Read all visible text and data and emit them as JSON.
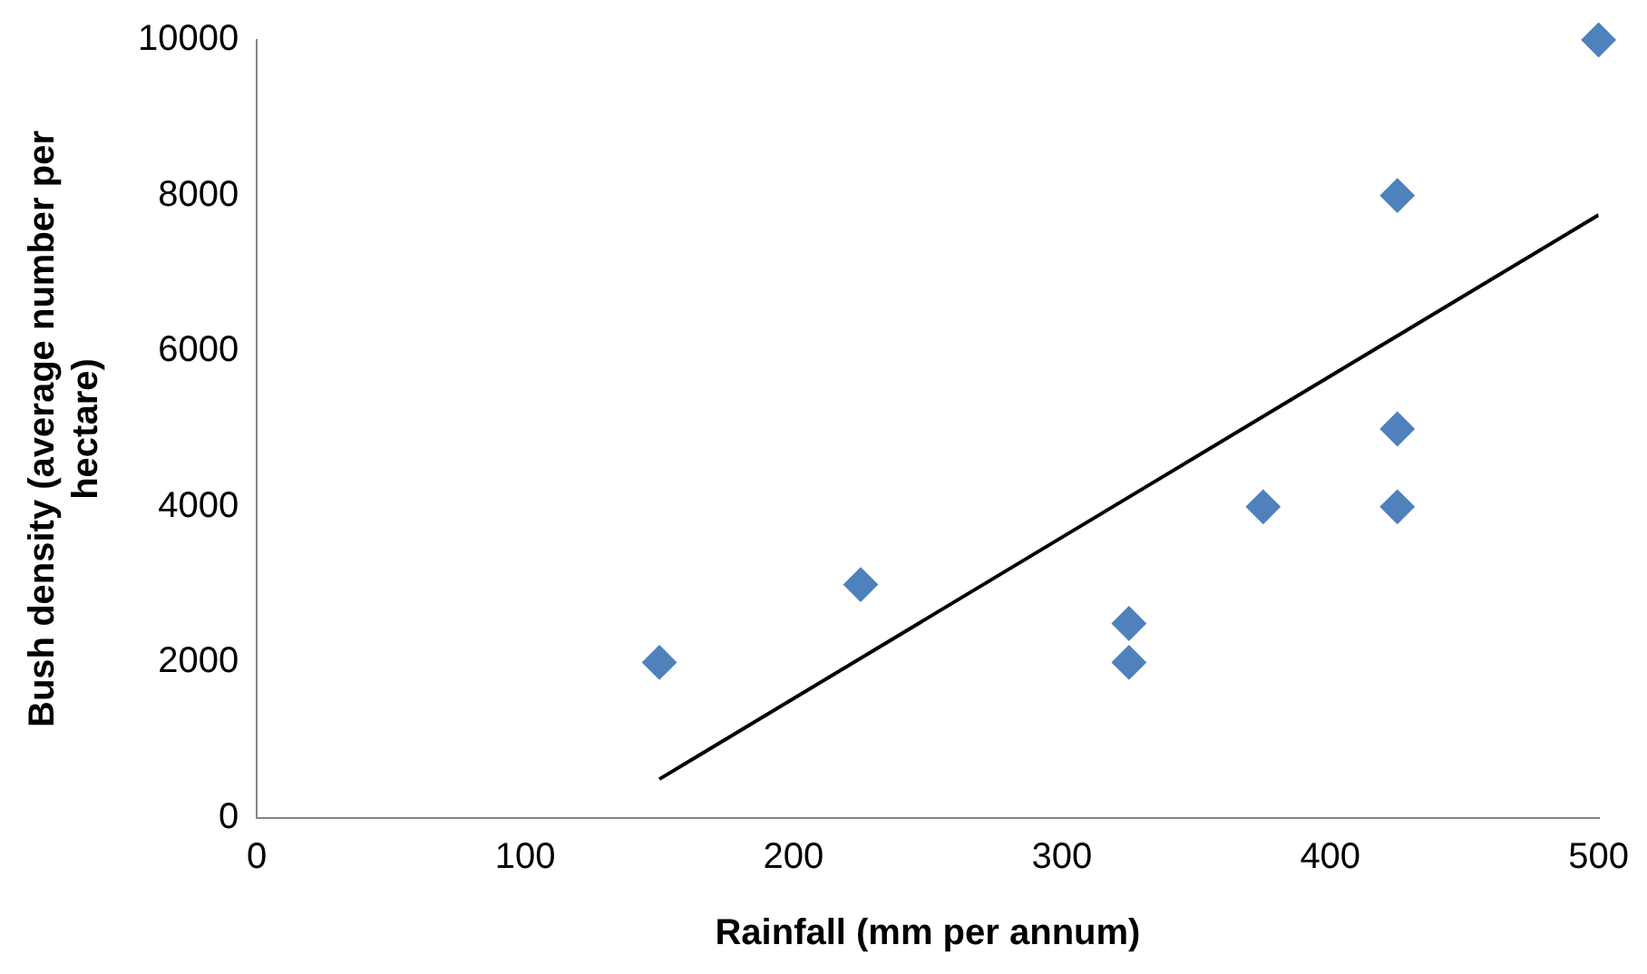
{
  "chart_data": {
    "type": "scatter",
    "xlabel": "Rainfall (mm per annum)",
    "ylabel": "Bush density (average number per hectare)",
    "xlim": [
      0,
      500
    ],
    "xticks": [
      0,
      100,
      200,
      300,
      400,
      500
    ],
    "ylim": [
      0,
      10000
    ],
    "yticks": [
      0,
      2000,
      4000,
      6000,
      8000,
      10000
    ],
    "grid": false,
    "legend": false,
    "series": [
      {
        "marker": "diamond",
        "color": "#4f81bd",
        "x": [
          150,
          225,
          325,
          325,
          375,
          425,
          425,
          425,
          500
        ],
        "values": [
          2000,
          3000,
          2500,
          2000,
          4000,
          8000,
          5000,
          4000,
          10000
        ]
      },
      {
        "type": "line",
        "color": "#000000",
        "x": [
          150,
          500
        ],
        "values": [
          500,
          7750
        ]
      }
    ]
  }
}
